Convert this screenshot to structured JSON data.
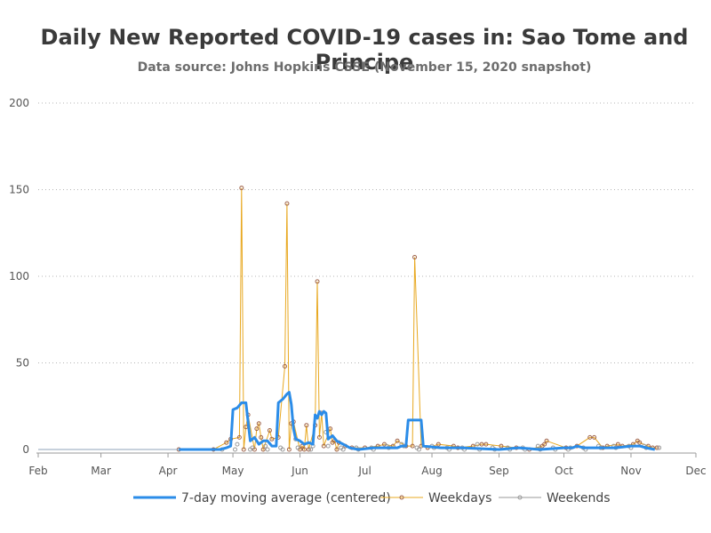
{
  "chart_data": {
    "type": "line",
    "title": "Daily New Reported COVID-19 cases in: Sao Tome and Principe",
    "subtitle": "Data source: Johns Hopkins CSSE (November 15, 2020 snapshot)",
    "xlim": [
      "2020-02-01",
      "2020-12-01"
    ],
    "ylim": [
      0,
      200
    ],
    "y_ticks": [
      0,
      50,
      100,
      150,
      200
    ],
    "x_ticks": [
      {
        "date": "2020-02-01",
        "label": "Feb"
      },
      {
        "date": "2020-03-01",
        "label": "Mar"
      },
      {
        "date": "2020-04-01",
        "label": "Apr"
      },
      {
        "date": "2020-05-01",
        "label": "May"
      },
      {
        "date": "2020-06-01",
        "label": "Jun"
      },
      {
        "date": "2020-07-01",
        "label": "Jul"
      },
      {
        "date": "2020-08-01",
        "label": "Aug"
      },
      {
        "date": "2020-09-01",
        "label": "Sep"
      },
      {
        "date": "2020-10-01",
        "label": "Oct"
      },
      {
        "date": "2020-11-01",
        "label": "Nov"
      },
      {
        "date": "2020-12-01",
        "label": "Dec"
      }
    ],
    "grid": "horizontal dotted",
    "legend_position": "bottom",
    "colors": {
      "moving_average": "#2b8ce8",
      "weekdays": "#e8a820",
      "weekends": "#9a9a9a",
      "markers": "#a0644a"
    },
    "series": [
      {
        "name": "7-day moving average (centered)",
        "points": [
          [
            "2020-04-06",
            0
          ],
          [
            "2020-04-25",
            0
          ],
          [
            "2020-04-28",
            1
          ],
          [
            "2020-04-30",
            2
          ],
          [
            "2020-05-01",
            23
          ],
          [
            "2020-05-03",
            24
          ],
          [
            "2020-05-05",
            27
          ],
          [
            "2020-05-07",
            27
          ],
          [
            "2020-05-09",
            5
          ],
          [
            "2020-05-11",
            7
          ],
          [
            "2020-05-13",
            3
          ],
          [
            "2020-05-15",
            5
          ],
          [
            "2020-05-17",
            5
          ],
          [
            "2020-05-19",
            2
          ],
          [
            "2020-05-21",
            2
          ],
          [
            "2020-05-22",
            27
          ],
          [
            "2020-05-24",
            29
          ],
          [
            "2020-05-26",
            32
          ],
          [
            "2020-05-27",
            33
          ],
          [
            "2020-05-28",
            26
          ],
          [
            "2020-05-29",
            12
          ],
          [
            "2020-05-30",
            6
          ],
          [
            "2020-06-01",
            5
          ],
          [
            "2020-06-03",
            3
          ],
          [
            "2020-06-05",
            4
          ],
          [
            "2020-06-07",
            3
          ],
          [
            "2020-06-08",
            20
          ],
          [
            "2020-06-09",
            18
          ],
          [
            "2020-06-10",
            22
          ],
          [
            "2020-06-11",
            20
          ],
          [
            "2020-06-12",
            22
          ],
          [
            "2020-06-13",
            21
          ],
          [
            "2020-06-14",
            6
          ],
          [
            "2020-06-16",
            8
          ],
          [
            "2020-06-18",
            5
          ],
          [
            "2020-06-21",
            3
          ],
          [
            "2020-06-24",
            1
          ],
          [
            "2020-06-28",
            0
          ],
          [
            "2020-07-05",
            1
          ],
          [
            "2020-07-12",
            1
          ],
          [
            "2020-07-16",
            1
          ],
          [
            "2020-07-18",
            2
          ],
          [
            "2020-07-20",
            2
          ],
          [
            "2020-07-21",
            17
          ],
          [
            "2020-07-25",
            17
          ],
          [
            "2020-07-27",
            17
          ],
          [
            "2020-07-28",
            2
          ],
          [
            "2020-08-05",
            1
          ],
          [
            "2020-08-15",
            1
          ],
          [
            "2020-09-01",
            0
          ],
          [
            "2020-09-10",
            1
          ],
          [
            "2020-09-20",
            0
          ],
          [
            "2020-10-01",
            1
          ],
          [
            "2020-10-05",
            1
          ],
          [
            "2020-10-07",
            2
          ],
          [
            "2020-10-10",
            1
          ],
          [
            "2020-10-15",
            1
          ],
          [
            "2020-10-25",
            1
          ],
          [
            "2020-11-01",
            2
          ],
          [
            "2020-11-05",
            2
          ],
          [
            "2020-11-08",
            1
          ],
          [
            "2020-11-12",
            0
          ]
        ]
      },
      {
        "name": "Weekdays",
        "points": [
          [
            "2020-04-06",
            0
          ],
          [
            "2020-04-22",
            0
          ],
          [
            "2020-04-28",
            4
          ],
          [
            "2020-04-30",
            6
          ],
          [
            "2020-05-04",
            7
          ],
          [
            "2020-05-05",
            151
          ],
          [
            "2020-05-06",
            0
          ],
          [
            "2020-05-07",
            13
          ],
          [
            "2020-05-08",
            20
          ],
          [
            "2020-05-11",
            0
          ],
          [
            "2020-05-12",
            12
          ],
          [
            "2020-05-13",
            15
          ],
          [
            "2020-05-14",
            7
          ],
          [
            "2020-05-15",
            0
          ],
          [
            "2020-05-18",
            11
          ],
          [
            "2020-05-19",
            6
          ],
          [
            "2020-05-22",
            7
          ],
          [
            "2020-05-25",
            48
          ],
          [
            "2020-05-26",
            142
          ],
          [
            "2020-05-27",
            0
          ],
          [
            "2020-05-28",
            15
          ],
          [
            "2020-05-29",
            16
          ],
          [
            "2020-06-01",
            0
          ],
          [
            "2020-06-02",
            2
          ],
          [
            "2020-06-03",
            0
          ],
          [
            "2020-06-04",
            14
          ],
          [
            "2020-06-05",
            0
          ],
          [
            "2020-06-08",
            14
          ],
          [
            "2020-06-09",
            97
          ],
          [
            "2020-06-10",
            7
          ],
          [
            "2020-06-11",
            21
          ],
          [
            "2020-06-12",
            2
          ],
          [
            "2020-06-15",
            12
          ],
          [
            "2020-06-16",
            4
          ],
          [
            "2020-06-17",
            5
          ],
          [
            "2020-06-18",
            0
          ],
          [
            "2020-06-19",
            4
          ],
          [
            "2020-06-22",
            2
          ],
          [
            "2020-06-25",
            1
          ],
          [
            "2020-07-01",
            1
          ],
          [
            "2020-07-07",
            2
          ],
          [
            "2020-07-10",
            3
          ],
          [
            "2020-07-14",
            2
          ],
          [
            "2020-07-16",
            5
          ],
          [
            "2020-07-20",
            2
          ],
          [
            "2020-07-23",
            2
          ],
          [
            "2020-07-24",
            111
          ],
          [
            "2020-07-27",
            2
          ],
          [
            "2020-07-30",
            1
          ],
          [
            "2020-08-04",
            3
          ],
          [
            "2020-08-11",
            2
          ],
          [
            "2020-08-13",
            1
          ],
          [
            "2020-08-20",
            2
          ],
          [
            "2020-08-24",
            3
          ],
          [
            "2020-08-26",
            3
          ],
          [
            "2020-09-02",
            2
          ],
          [
            "2020-09-09",
            1
          ],
          [
            "2020-09-15",
            0
          ],
          [
            "2020-09-21",
            2
          ],
          [
            "2020-09-22",
            3
          ],
          [
            "2020-09-23",
            5
          ],
          [
            "2020-10-02",
            1
          ],
          [
            "2020-10-07",
            2
          ],
          [
            "2020-10-13",
            7
          ],
          [
            "2020-10-15",
            7
          ],
          [
            "2020-10-19",
            1
          ],
          [
            "2020-10-21",
            2
          ],
          [
            "2020-10-26",
            3
          ],
          [
            "2020-10-28",
            2
          ],
          [
            "2020-11-02",
            3
          ],
          [
            "2020-11-04",
            5
          ],
          [
            "2020-11-05",
            4
          ],
          [
            "2020-11-09",
            2
          ],
          [
            "2020-11-11",
            1
          ],
          [
            "2020-11-13",
            1
          ]
        ]
      },
      {
        "name": "Weekends",
        "points": [
          [
            "2020-04-26",
            0
          ],
          [
            "2020-05-02",
            0
          ],
          [
            "2020-05-03",
            3
          ],
          [
            "2020-05-09",
            0
          ],
          [
            "2020-05-10",
            1
          ],
          [
            "2020-05-16",
            2
          ],
          [
            "2020-05-17",
            0
          ],
          [
            "2020-05-23",
            1
          ],
          [
            "2020-05-24",
            0
          ],
          [
            "2020-05-30",
            6
          ],
          [
            "2020-05-31",
            1
          ],
          [
            "2020-06-06",
            0
          ],
          [
            "2020-06-07",
            2
          ],
          [
            "2020-06-13",
            10
          ],
          [
            "2020-06-14",
            2
          ],
          [
            "2020-06-20",
            1
          ],
          [
            "2020-06-21",
            0
          ],
          [
            "2020-06-27",
            1
          ],
          [
            "2020-06-28",
            0
          ],
          [
            "2020-07-04",
            1
          ],
          [
            "2020-07-05",
            0
          ],
          [
            "2020-07-11",
            2
          ],
          [
            "2020-07-12",
            1
          ],
          [
            "2020-07-18",
            3
          ],
          [
            "2020-07-19",
            2
          ],
          [
            "2020-07-25",
            1
          ],
          [
            "2020-07-26",
            0
          ],
          [
            "2020-08-01",
            2
          ],
          [
            "2020-08-02",
            1
          ],
          [
            "2020-08-08",
            1
          ],
          [
            "2020-08-09",
            0
          ],
          [
            "2020-08-15",
            1
          ],
          [
            "2020-08-16",
            0
          ],
          [
            "2020-08-22",
            3
          ],
          [
            "2020-08-23",
            0
          ],
          [
            "2020-08-29",
            1
          ],
          [
            "2020-08-30",
            0
          ],
          [
            "2020-09-05",
            1
          ],
          [
            "2020-09-06",
            0
          ],
          [
            "2020-09-12",
            1
          ],
          [
            "2020-09-13",
            0
          ],
          [
            "2020-09-19",
            2
          ],
          [
            "2020-09-20",
            0
          ],
          [
            "2020-09-26",
            1
          ],
          [
            "2020-09-27",
            0
          ],
          [
            "2020-10-03",
            0
          ],
          [
            "2020-10-04",
            1
          ],
          [
            "2020-10-10",
            1
          ],
          [
            "2020-10-11",
            0
          ],
          [
            "2020-10-17",
            2
          ],
          [
            "2020-10-18",
            1
          ],
          [
            "2020-10-24",
            2
          ],
          [
            "2020-10-25",
            1
          ],
          [
            "2020-10-31",
            2
          ],
          [
            "2020-11-01",
            1
          ],
          [
            "2020-11-07",
            2
          ],
          [
            "2020-11-08",
            1
          ],
          [
            "2020-11-14",
            1
          ]
        ]
      }
    ]
  }
}
